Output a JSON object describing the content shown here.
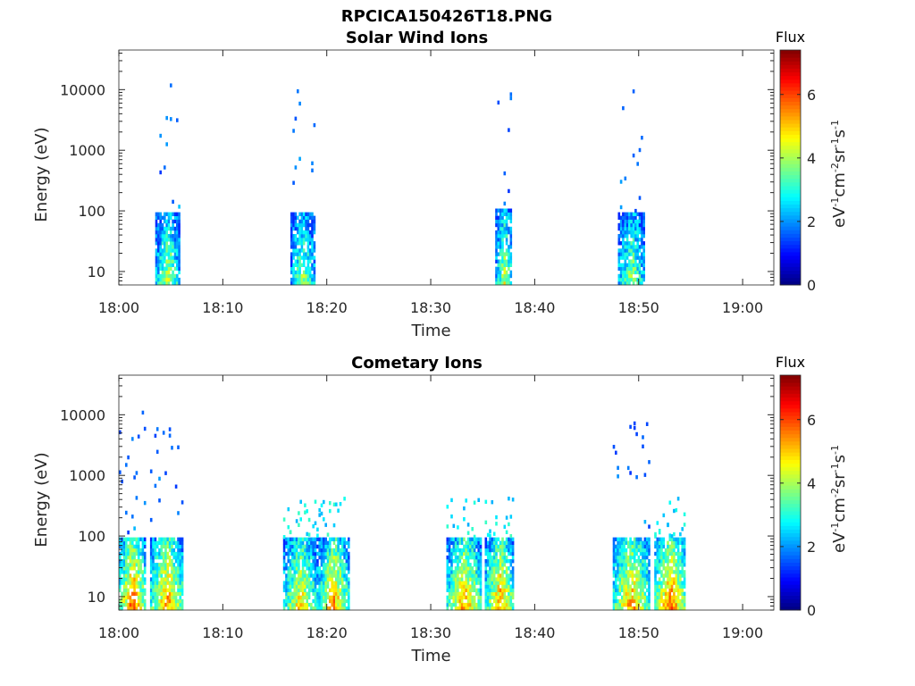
{
  "figure_title": "RPCICA150426T18.PNG",
  "colorbar": {
    "title": "Flux",
    "label_parts": [
      "eV",
      "-1",
      "cm",
      "-2",
      "sr",
      "-1",
      "s",
      "-1"
    ],
    "ticks": [
      "0",
      "2",
      "4",
      "6"
    ],
    "tick_values": [
      0,
      2,
      4,
      6
    ],
    "range": [
      0,
      7.4
    ],
    "colormap": "jet",
    "colors": [
      "#00007f",
      "#0000ff",
      "#007fff",
      "#00ffff",
      "#7fff7f",
      "#ffff00",
      "#ff7f00",
      "#ff0000",
      "#7f0000"
    ]
  },
  "chart_data": [
    {
      "type": "heatmap",
      "title": "Solar Wind Ions",
      "xlabel": "Time",
      "ylabel": "Energy (eV)",
      "x_ticks": [
        "18:00",
        "18:10",
        "18:20",
        "18:30",
        "18:40",
        "18:50",
        "19:00"
      ],
      "x_tick_minutes": [
        0,
        10,
        20,
        30,
        40,
        50,
        60
      ],
      "xlim_minutes": [
        0,
        63
      ],
      "y_scale": "log",
      "y_ticks": [
        "10",
        "100",
        "1000",
        "10000"
      ],
      "y_tick_values": [
        10,
        100,
        1000,
        10000
      ],
      "ylim": [
        6,
        45000
      ],
      "grid": false,
      "bursts": [
        {
          "t0": 3.5,
          "t1": 5.8,
          "core_emin": 6,
          "core_emax": 90,
          "core_flux": 4.2,
          "hi_emax": 12000,
          "hi_flux": 1.6
        },
        {
          "t0": 16.5,
          "t1": 18.8,
          "core_emin": 6,
          "core_emax": 90,
          "core_flux": 4.0,
          "hi_emax": 12000,
          "hi_flux": 1.6
        },
        {
          "t0": 36.2,
          "t1": 37.8,
          "core_emin": 6,
          "core_emax": 100,
          "core_flux": 4.3,
          "hi_emax": 11000,
          "hi_flux": 1.6
        },
        {
          "t0": 48.0,
          "t1": 50.5,
          "core_emin": 6,
          "core_emax": 90,
          "core_flux": 4.0,
          "hi_emax": 11000,
          "hi_flux": 1.6
        }
      ]
    },
    {
      "type": "heatmap",
      "title": "Cometary Ions",
      "xlabel": "Time",
      "ylabel": "Energy (eV)",
      "x_ticks": [
        "18:00",
        "18:10",
        "18:20",
        "18:30",
        "18:40",
        "18:50",
        "19:00"
      ],
      "x_tick_minutes": [
        0,
        10,
        20,
        30,
        40,
        50,
        60
      ],
      "xlim_minutes": [
        0,
        63
      ],
      "y_scale": "log",
      "y_ticks": [
        "10",
        "100",
        "1000",
        "10000"
      ],
      "y_tick_values": [
        10,
        100,
        1000,
        10000
      ],
      "ylim": [
        6,
        45000
      ],
      "grid": false,
      "bursts": [
        {
          "t0": 0.0,
          "t1": 2.5,
          "core_emin": 6,
          "core_emax": 90,
          "core_flux": 6.0,
          "hi_emax": 12000,
          "hi_flux": 1.5
        },
        {
          "t0": 3.0,
          "t1": 6.2,
          "core_emin": 6,
          "core_emax": 90,
          "core_flux": 5.5,
          "hi_emax": 14000,
          "hi_flux": 1.5
        },
        {
          "t0": 15.8,
          "t1": 19.0,
          "core_emin": 6,
          "core_emax": 90,
          "core_flux": 5.0,
          "hi_emax": 400,
          "hi_flux": 2.5
        },
        {
          "t0": 19.2,
          "t1": 22.0,
          "core_emin": 6,
          "core_emax": 90,
          "core_flux": 5.5,
          "hi_emax": 400,
          "hi_flux": 2.5
        },
        {
          "t0": 31.5,
          "t1": 34.8,
          "core_emin": 6,
          "core_emax": 90,
          "core_flux": 5.5,
          "hi_emax": 400,
          "hi_flux": 2.5
        },
        {
          "t0": 35.2,
          "t1": 38.0,
          "core_emin": 6,
          "core_emax": 90,
          "core_flux": 5.5,
          "hi_emax": 400,
          "hi_flux": 2.5
        },
        {
          "t0": 47.5,
          "t1": 51.0,
          "core_emin": 6,
          "core_emax": 90,
          "core_flux": 5.5,
          "hi_emax": 8000,
          "hi_flux": 1.5
        },
        {
          "t0": 51.5,
          "t1": 54.5,
          "core_emin": 6,
          "core_emax": 90,
          "core_flux": 6.0,
          "hi_emax": 400,
          "hi_flux": 2.5
        }
      ]
    }
  ]
}
